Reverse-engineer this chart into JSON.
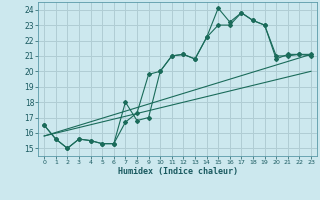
{
  "xlabel": "Humidex (Indice chaleur)",
  "bg_color": "#cce8ee",
  "grid_color": "#b0cdd4",
  "line_color": "#1a6b5a",
  "xlim": [
    -0.5,
    23.5
  ],
  "ylim": [
    14.5,
    24.5
  ],
  "xticks": [
    0,
    1,
    2,
    3,
    4,
    5,
    6,
    7,
    8,
    9,
    10,
    11,
    12,
    13,
    14,
    15,
    16,
    17,
    18,
    19,
    20,
    21,
    22,
    23
  ],
  "yticks": [
    15,
    16,
    17,
    18,
    19,
    20,
    21,
    22,
    23,
    24
  ],
  "line1_x": [
    0,
    1,
    2,
    3,
    4,
    5,
    6,
    7,
    8,
    9,
    10,
    11,
    12,
    13,
    14,
    15,
    16,
    17,
    18,
    19,
    20,
    21,
    22,
    23
  ],
  "line1_y": [
    16.5,
    15.6,
    15.0,
    15.6,
    15.5,
    15.3,
    15.3,
    16.7,
    17.3,
    19.8,
    20.0,
    21.0,
    21.1,
    20.8,
    22.2,
    24.1,
    23.2,
    23.8,
    23.3,
    23.0,
    21.0,
    21.0,
    21.1,
    21.1
  ],
  "line2_x": [
    0,
    1,
    2,
    3,
    4,
    5,
    6,
    7,
    8,
    9,
    10,
    11,
    12,
    13,
    14,
    15,
    16,
    17,
    18,
    19,
    20,
    21,
    22,
    23
  ],
  "line2_y": [
    16.5,
    15.6,
    15.0,
    15.6,
    15.5,
    15.3,
    15.3,
    18.0,
    16.8,
    17.0,
    20.0,
    21.0,
    21.1,
    20.8,
    22.2,
    23.0,
    23.0,
    23.8,
    23.3,
    23.0,
    20.8,
    21.1,
    21.1,
    21.0
  ],
  "line3_x": [
    0,
    23
  ],
  "line3_y": [
    15.8,
    21.1
  ],
  "line4_x": [
    0,
    23
  ],
  "line4_y": [
    15.8,
    20.0
  ]
}
